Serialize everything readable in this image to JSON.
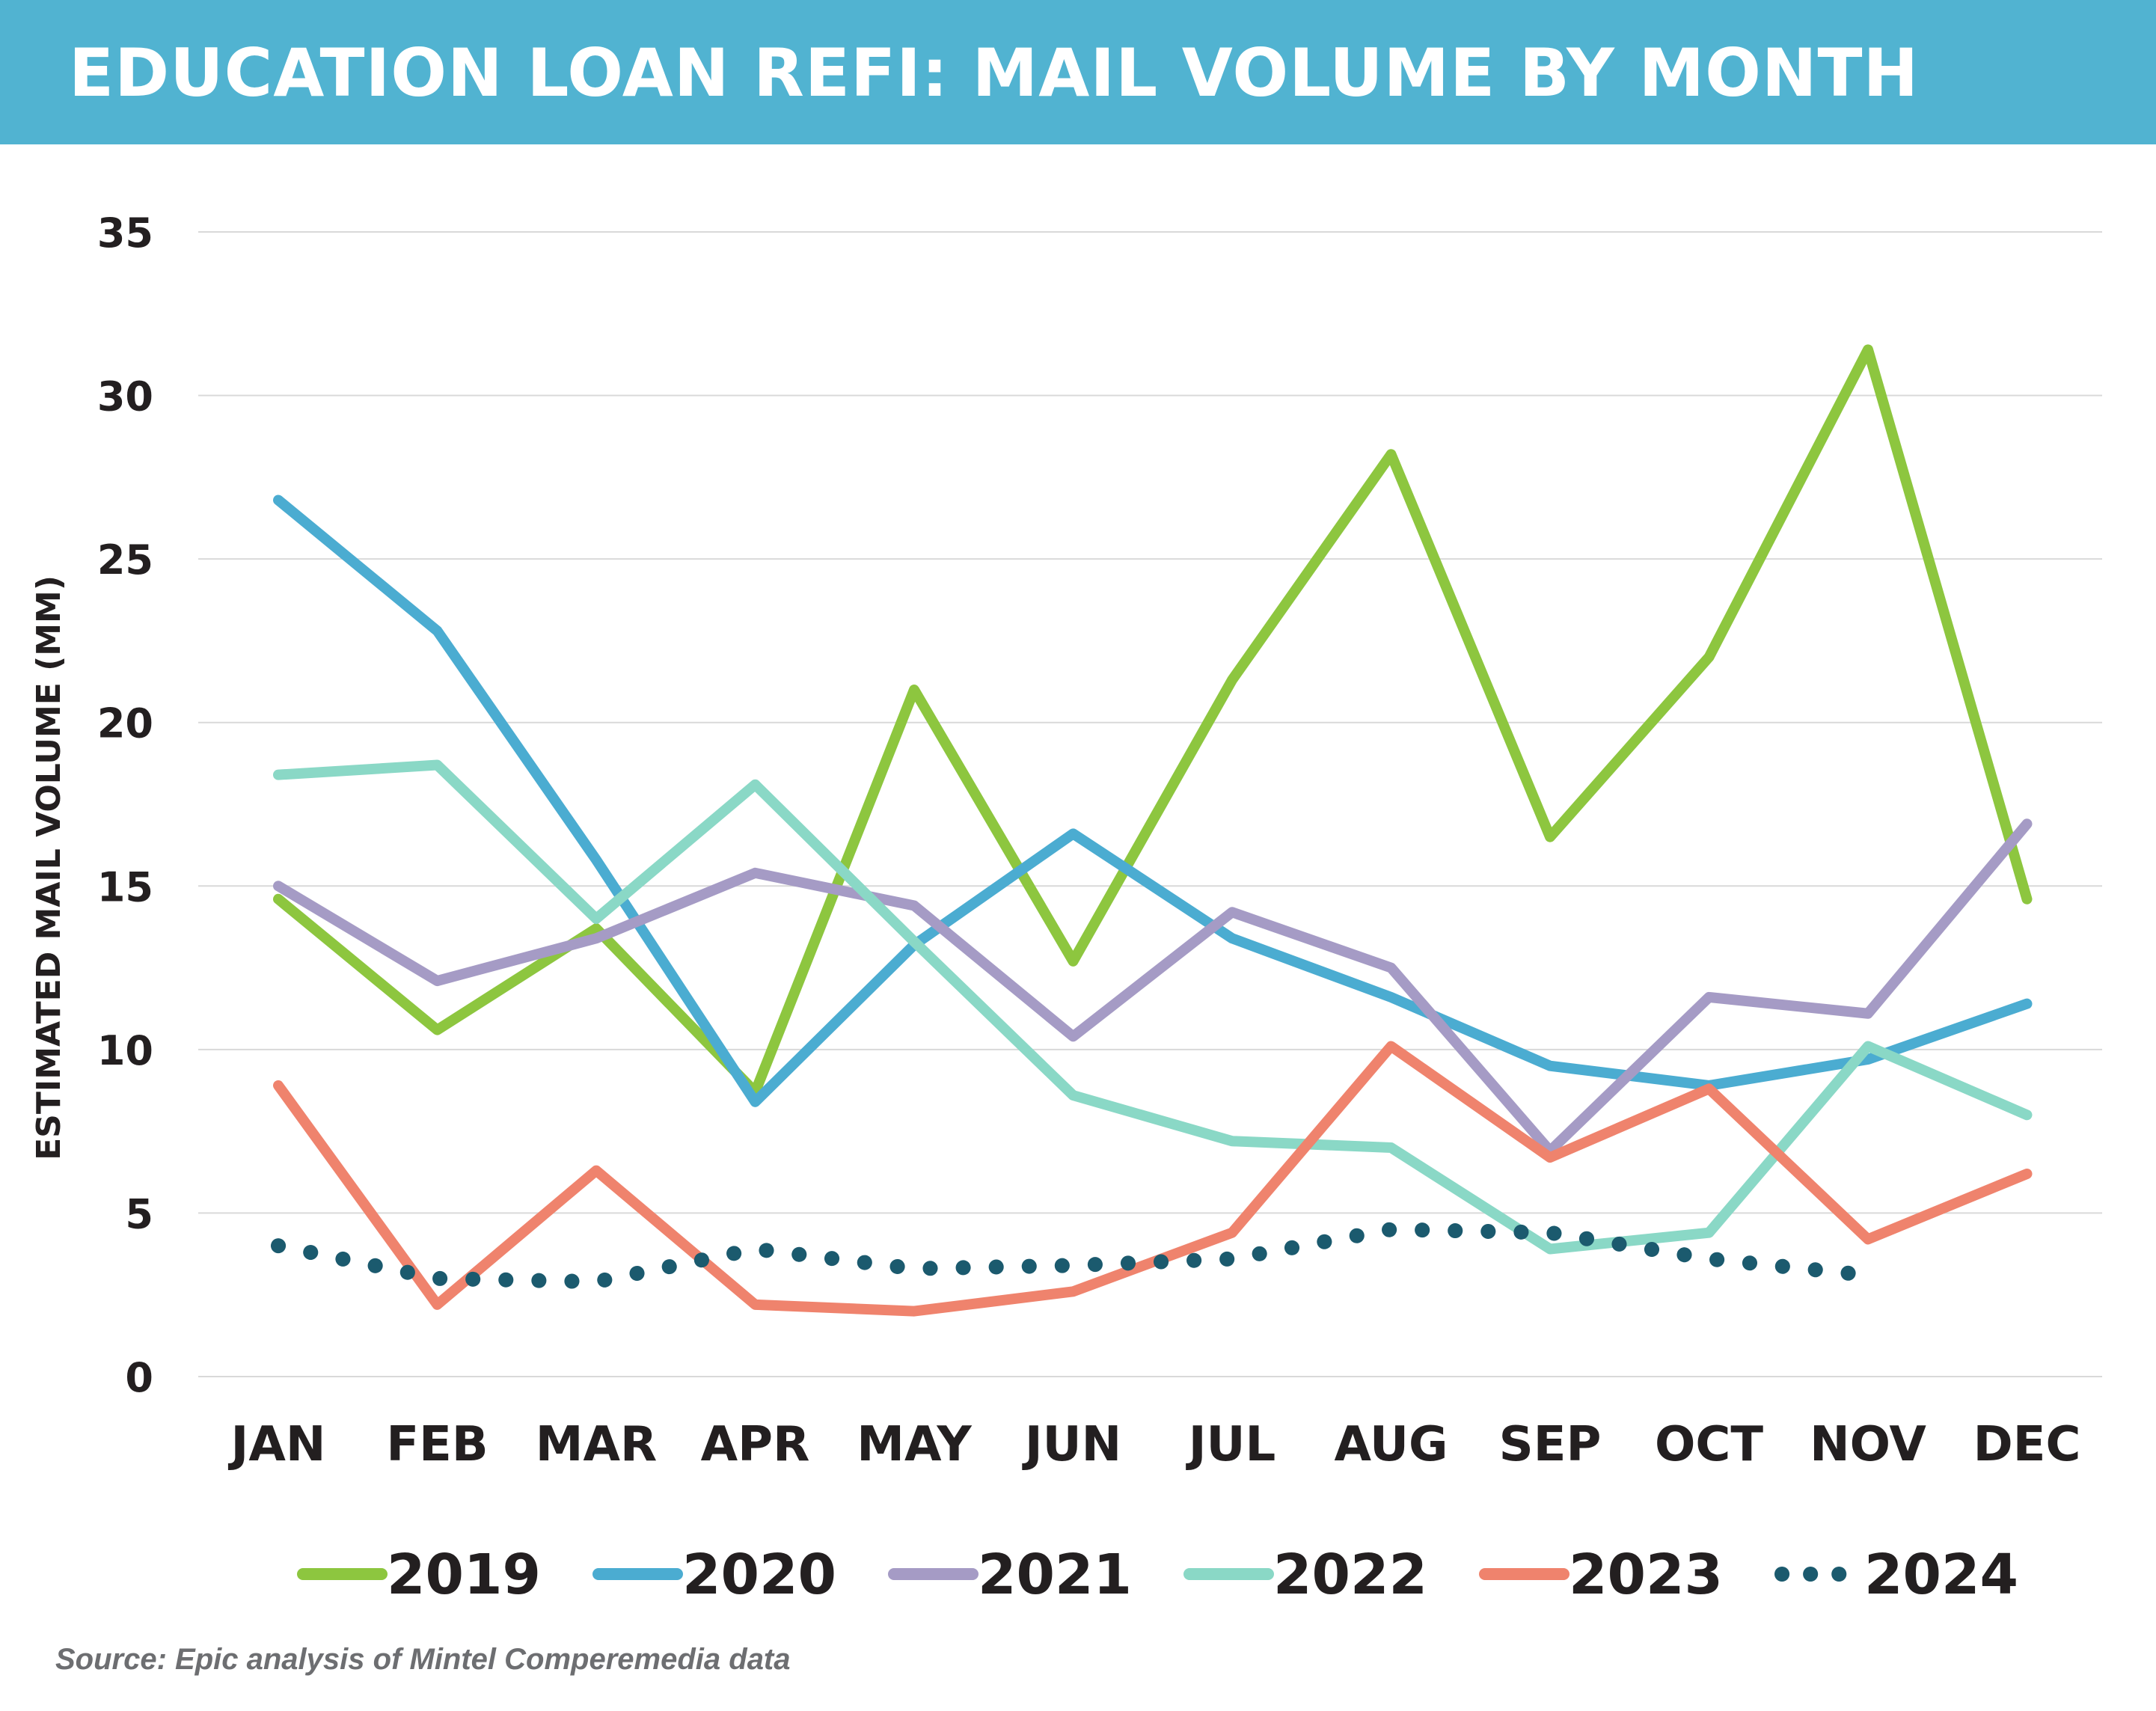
{
  "chart_data": {
    "type": "line",
    "title": "EDUCATION LOAN REFI: MAIL VOLUME BY MONTH",
    "ylabel": "ESTIMATED MAIL VOLUME (MM)",
    "xlabel": "",
    "categories": [
      "JAN",
      "FEB",
      "MAR",
      "APR",
      "MAY",
      "JUN",
      "JUL",
      "AUG",
      "SEP",
      "OCT",
      "NOV",
      "DEC"
    ],
    "ylim": [
      0,
      35
    ],
    "yticks": [
      0,
      5,
      10,
      15,
      20,
      25,
      30,
      35
    ],
    "grid": true,
    "legend_position": "bottom",
    "series": [
      {
        "name": "2019",
        "color": "#8dc63f",
        "style": "solid",
        "values": [
          14.6,
          10.6,
          13.7,
          8.7,
          21.0,
          12.7,
          21.3,
          28.2,
          16.5,
          22.0,
          31.4,
          14.6
        ]
      },
      {
        "name": "2020",
        "color": "#4bacd1",
        "style": "solid",
        "values": [
          26.8,
          22.8,
          15.8,
          8.4,
          13.2,
          16.6,
          13.4,
          11.6,
          9.5,
          8.9,
          9.7,
          11.4
        ]
      },
      {
        "name": "2021",
        "color": "#a59bc5",
        "style": "solid",
        "values": [
          15.0,
          12.1,
          13.4,
          15.4,
          14.4,
          10.4,
          14.2,
          12.5,
          6.9,
          11.6,
          11.1,
          16.9
        ]
      },
      {
        "name": "2022",
        "color": "#8ad8c6",
        "style": "solid",
        "values": [
          18.4,
          18.7,
          14.0,
          18.1,
          13.3,
          8.6,
          7.2,
          7.0,
          3.9,
          4.4,
          10.1,
          8.0
        ]
      },
      {
        "name": "2023",
        "color": "#ef836d",
        "style": "solid",
        "values": [
          8.9,
          2.2,
          6.3,
          2.2,
          2.0,
          2.6,
          4.4,
          10.1,
          6.7,
          8.8,
          4.2,
          6.2
        ]
      },
      {
        "name": "2024",
        "color": "#1b5a6e",
        "style": "dotted",
        "values": [
          4.0,
          3.0,
          2.9,
          3.9,
          3.3,
          3.4,
          3.6,
          4.5,
          4.4,
          3.6,
          3.1,
          null
        ]
      }
    ]
  },
  "source": "Source: Epic analysis of Mintel Comperemedia data"
}
